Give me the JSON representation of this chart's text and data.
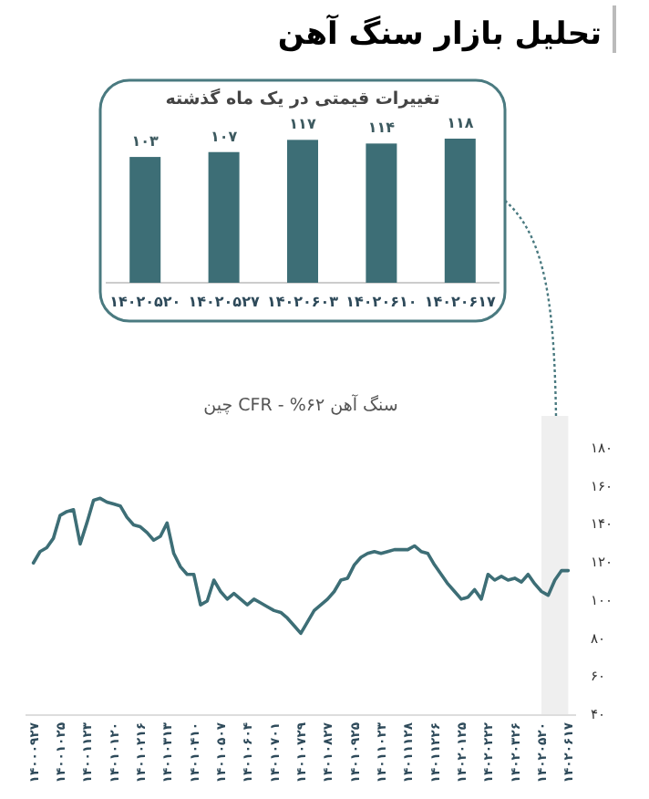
{
  "chart_data": [
    {
      "type": "other",
      "title": "تحلیل بازار سنگ آهن"
    },
    {
      "type": "bar",
      "title": "تغییرات قیمتی در یک ماه گذشته",
      "categories": [
        "۱۴۰۲۰۵۲۰",
        "۱۴۰۲۰۵۲۷",
        "۱۴۰۲۰۶۰۳",
        "۱۴۰۲۰۶۱۰",
        "۱۴۰۲۰۶۱۷"
      ],
      "values": [
        103,
        107,
        117,
        114,
        118
      ],
      "value_labels": [
        "۱۰۳",
        "۱۰۷",
        "۱۱۷",
        "۱۱۴",
        "۱۱۸"
      ],
      "color": "#3d6e76"
    },
    {
      "type": "line",
      "title": "سنگ آهن ۶۲% - CFR چین",
      "categories": [
        "۱۴۰۰۰۹۲۷",
        null,
        null,
        null,
        "۱۴۰۰۱۰۲۵",
        null,
        null,
        null,
        "۱۴۰۰۱۱۲۳",
        null,
        null,
        null,
        "۱۴۰۱۰۱۲۰",
        null,
        null,
        null,
        "۱۴۰۱۰۲۱۶",
        null,
        null,
        null,
        "۱۴۰۱۰۳۱۳",
        null,
        null,
        null,
        "۱۴۰۱۰۴۱۰",
        null,
        null,
        null,
        "۱۴۰۱۰۵۰۷",
        null,
        null,
        null,
        "۱۴۰۱۰۶۰۴",
        null,
        null,
        null,
        "۱۴۰۱۰۷۰۱",
        null,
        null,
        null,
        "۱۴۰۱۰۷۲۹",
        null,
        null,
        null,
        "۱۴۰۱۰۸۲۷",
        null,
        null,
        null,
        "۱۴۰۱۰۹۲۵",
        null,
        null,
        null,
        "۱۴۰۱۱۰۲۳",
        null,
        null,
        null,
        "۱۴۰۱۱۱۲۸",
        null,
        null,
        null,
        "۱۴۰۱۱۲۲۶",
        null,
        null,
        null,
        "۱۴۰۲۰۱۲۵",
        null,
        null,
        null,
        "۱۴۰۲۰۲۲۲",
        null,
        null,
        null,
        "۱۴۰۲۰۳۲۶",
        null,
        null,
        null,
        "۱۴۰۲۰۵۲۰",
        null,
        null,
        null,
        "۱۴۰۲۰۶۱۷"
      ],
      "series": [
        {
          "color": "#3d6e76",
          "values": [
            119,
            125,
            127,
            132,
            144,
            146,
            147,
            129,
            140,
            152,
            153,
            151,
            150,
            149,
            143,
            139,
            138,
            135,
            131,
            133,
            140,
            124,
            117,
            113,
            113,
            97,
            99,
            110,
            104,
            100,
            103,
            100,
            97,
            100,
            98,
            96,
            94,
            93,
            90,
            86,
            82,
            88,
            94,
            97,
            100,
            104,
            110,
            111,
            118,
            122,
            124,
            125,
            124,
            125,
            126,
            126,
            126,
            128,
            125,
            124,
            118,
            113,
            108,
            104,
            100,
            101,
            105,
            100,
            113,
            110,
            112,
            110,
            111,
            109,
            113,
            108,
            104,
            102,
            110,
            115,
            115
          ]
        }
      ],
      "ylim": [
        40,
        180
      ],
      "yticks": [
        {
          "value": 40,
          "label": "۴۰"
        },
        {
          "value": 60,
          "label": "۶۰"
        },
        {
          "value": 80,
          "label": "۸۰"
        },
        {
          "value": 100,
          "label": "۱۰۰"
        },
        {
          "value": 120,
          "label": "۱۲۰"
        },
        {
          "value": 140,
          "label": "۱۴۰"
        },
        {
          "value": 160,
          "label": "۱۶۰"
        },
        {
          "value": 180,
          "label": "۱۸۰"
        }
      ],
      "bands": [
        {
          "axis": "x",
          "from": "۱۴۰۲۰۵۲۰",
          "to": "۱۴۰۲۰۶۱۷",
          "color": "#efefef"
        }
      ]
    }
  ]
}
